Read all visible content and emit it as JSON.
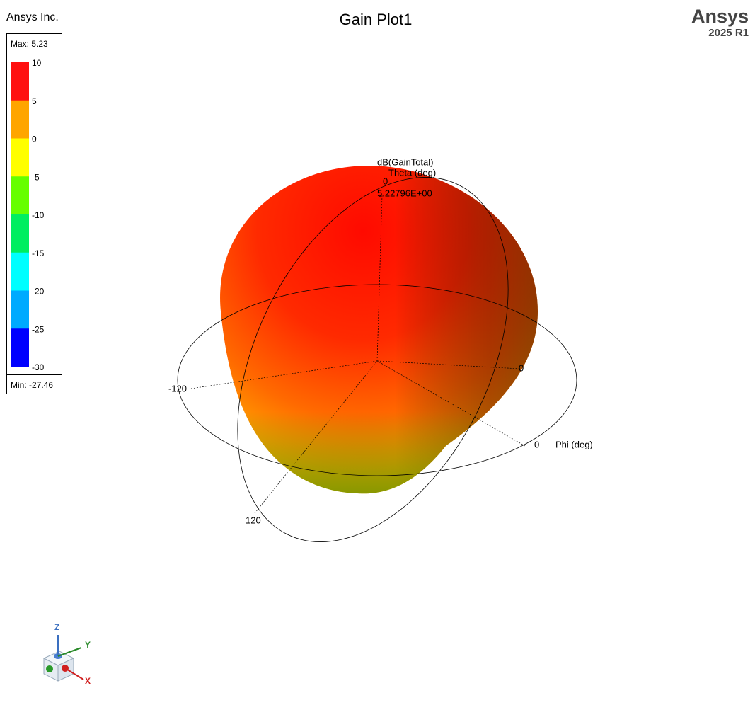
{
  "header": {
    "company": "Ansys Inc.",
    "title": "Gain Plot1",
    "brand": "Ansys",
    "version": "2025 R1"
  },
  "legend": {
    "max": "Max: 5.23",
    "min": "Min: -27.46",
    "ticks": [
      10,
      5,
      0,
      -5,
      -10,
      -15,
      -20,
      -25,
      -30
    ]
  },
  "plot": {
    "quantity": "dB(GainTotal)",
    "theta_label": "Theta (deg)",
    "theta_value": "0",
    "marker_value": "5.22796E+00",
    "phi_label": "Phi (deg)",
    "phi_tick_labels": [
      "-120",
      "0",
      "0",
      "120"
    ]
  },
  "triad": {
    "z": "Z",
    "y": "Y",
    "x": "X"
  }
}
